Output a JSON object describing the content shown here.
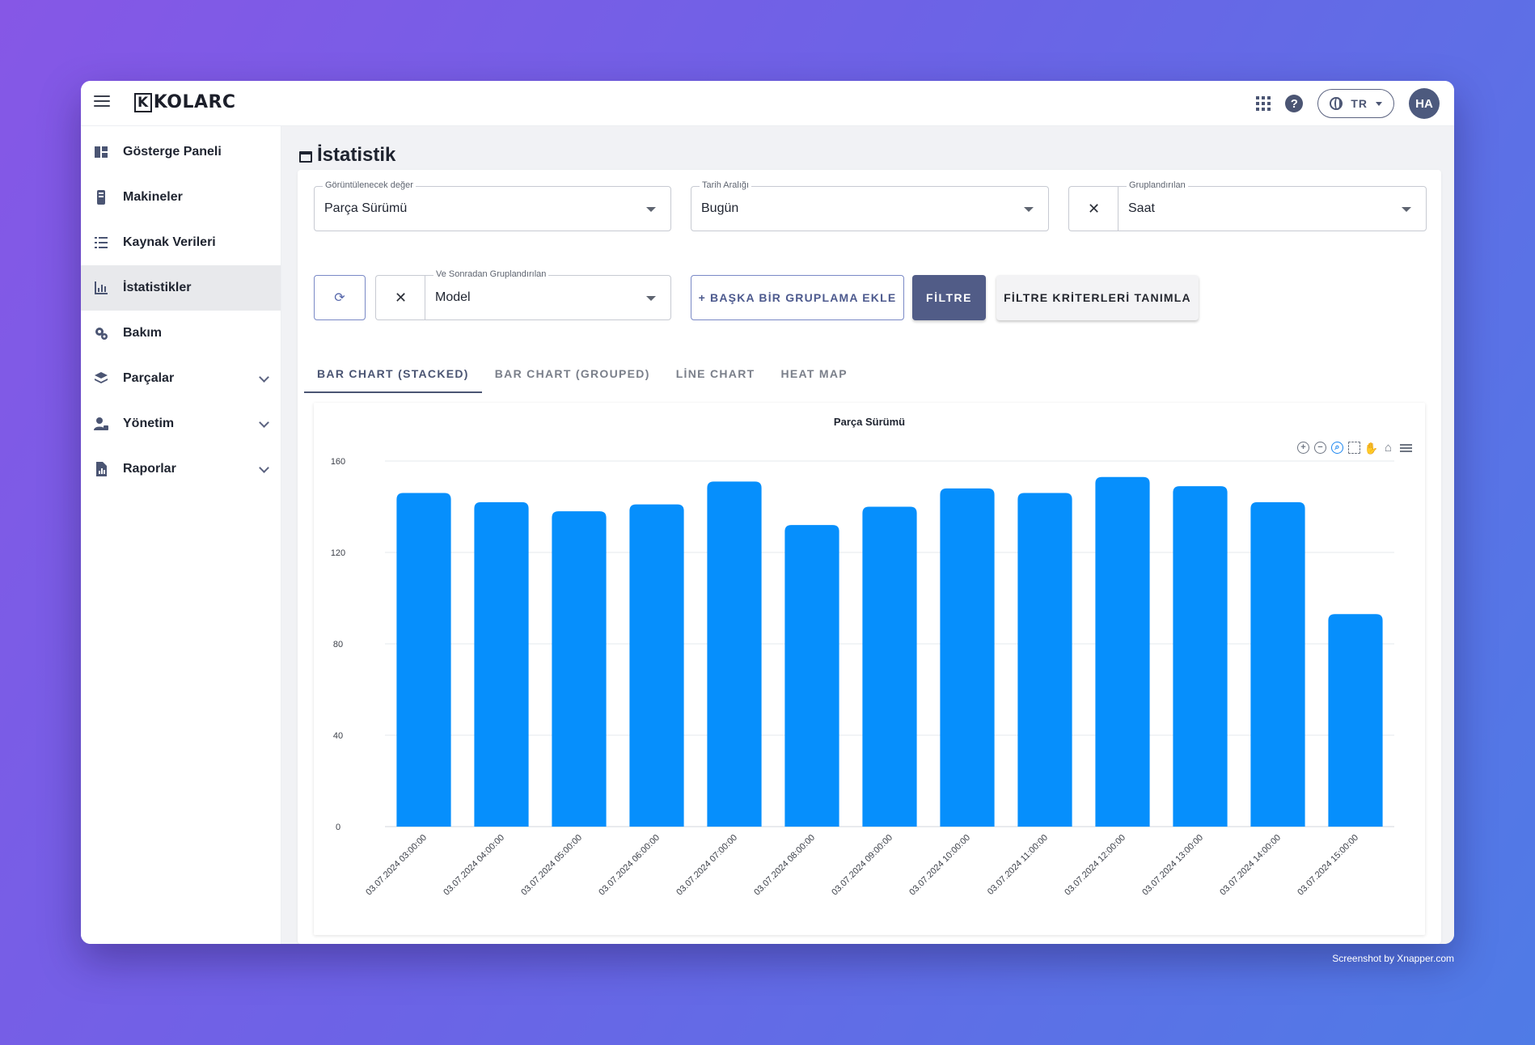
{
  "app": {
    "logo": "KOLARC",
    "logo_mark": "K",
    "language": "TR",
    "avatar_initials": "HA"
  },
  "sidebar": {
    "items": [
      {
        "label": "Gösterge Paneli",
        "icon": "dashboard-icon"
      },
      {
        "label": "Makineler",
        "icon": "machine-icon"
      },
      {
        "label": "Kaynak Verileri",
        "icon": "list-icon"
      },
      {
        "label": "İstatistikler",
        "icon": "chart-icon",
        "active": true
      },
      {
        "label": "Bakım",
        "icon": "maintenance-icon"
      },
      {
        "label": "Parçalar",
        "icon": "layers-icon",
        "expandable": true
      },
      {
        "label": "Yönetim",
        "icon": "admin-icon",
        "expandable": true
      },
      {
        "label": "Raporlar",
        "icon": "report-icon",
        "expandable": true
      }
    ]
  },
  "page": {
    "title": "İstatistik"
  },
  "filters": {
    "value_field": {
      "label": "Görüntülenecek değer",
      "value": "Parça Sürümü"
    },
    "date_range": {
      "label": "Tarih Aralığı",
      "value": "Bugün"
    },
    "group_by": {
      "label": "Gruplandırılan",
      "value": "Saat"
    },
    "then_group_by": {
      "label": "Ve Sonradan Gruplandırılan",
      "value": "Model"
    },
    "clear_symbol": "✕",
    "refresh_symbol": "⟳",
    "add_group_label": "+ BAŞKA BİR GRUPLAMA EKLE",
    "filter_label": "FİLTRE",
    "criteria_label": "FİLTRE KRİTERLERİ TANIMLA"
  },
  "tabs": [
    {
      "label": "BAR CHART (STACKED)",
      "active": true
    },
    {
      "label": "BAR CHART (GROUPED)"
    },
    {
      "label": "LİNE CHART"
    },
    {
      "label": "HEAT MAP"
    }
  ],
  "colors": {
    "bar": "#068ffc",
    "accent": "#515c87"
  },
  "chart_data": {
    "type": "bar",
    "title": "Parça Sürümü",
    "xlabel": "",
    "ylabel": "",
    "ylim": [
      0,
      160
    ],
    "yticks": [
      0,
      40,
      80,
      120,
      160
    ],
    "grid": true,
    "categories": [
      "03.07.2024 03:00:00",
      "03.07.2024 04:00:00",
      "03.07.2024 05:00:00",
      "03.07.2024 06:00:00",
      "03.07.2024 07:00:00",
      "03.07.2024 08:00:00",
      "03.07.2024 09:00:00",
      "03.07.2024 10:00:00",
      "03.07.2024 11:00:00",
      "03.07.2024 12:00:00",
      "03.07.2024 13:00:00",
      "03.07.2024 14:00:00",
      "03.07.2024 15:00:00"
    ],
    "values": [
      146,
      142,
      138,
      141,
      151,
      132,
      140,
      148,
      146,
      153,
      149,
      142,
      93
    ]
  },
  "watermark": "Screenshot by Xnapper.com"
}
